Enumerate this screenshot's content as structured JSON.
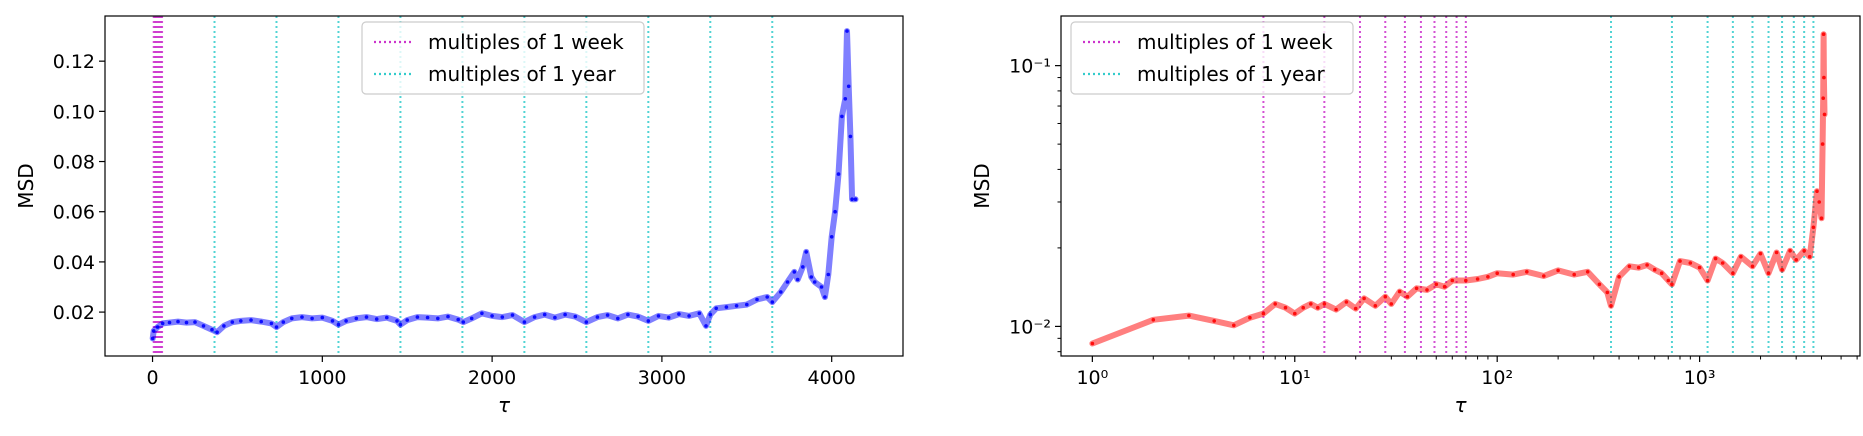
{
  "chart_data": [
    {
      "type": "line",
      "xlabel": "τ",
      "ylabel": "MSD",
      "xscale": "linear",
      "yscale": "linear",
      "xlim": [
        -280,
        4420
      ],
      "ylim": [
        0.0025,
        0.138
      ],
      "xticks": [
        0,
        1000,
        2000,
        3000,
        4000
      ],
      "xtick_labels": [
        "0",
        "1000",
        "2000",
        "3000",
        "4000"
      ],
      "yticks": [
        0.02,
        0.04,
        0.06,
        0.08,
        0.1,
        0.12
      ],
      "ytick_labels": [
        "0.02",
        "0.04",
        "0.06",
        "0.08",
        "0.10",
        "0.12"
      ],
      "line_color": "#0000ff",
      "legend": {
        "position": "upper-center",
        "entries": [
          {
            "label": "multiples of 1 week",
            "color": "#cc33cc",
            "style": "dotted"
          },
          {
            "label": "multiples of 1 year",
            "color": "#33cccc",
            "style": "dotted"
          }
        ]
      },
      "vlines": {
        "week_multiples": [
          7,
          14,
          21,
          28,
          35,
          42,
          49,
          56
        ],
        "year_multiples": [
          365,
          730,
          1095,
          1460,
          1825,
          2190,
          2555,
          2920,
          3285,
          3650
        ]
      },
      "series": [
        {
          "x": [
            1,
            7,
            30,
            60,
            100,
            150,
            200,
            250,
            300,
            350,
            380,
            420,
            470,
            520,
            580,
            640,
            700,
            730,
            770,
            820,
            880,
            940,
            1000,
            1060,
            1095,
            1140,
            1200,
            1260,
            1320,
            1380,
            1440,
            1460,
            1500,
            1560,
            1620,
            1680,
            1740,
            1800,
            1830,
            1880,
            1940,
            2000,
            2060,
            2120,
            2190,
            2250,
            2310,
            2370,
            2430,
            2490,
            2555,
            2620,
            2680,
            2740,
            2800,
            2860,
            2920,
            2980,
            3040,
            3100,
            3160,
            3220,
            3260,
            3285,
            3320,
            3380,
            3440,
            3500,
            3560,
            3620,
            3650,
            3700,
            3740,
            3780,
            3800,
            3830,
            3850,
            3880,
            3900,
            3940,
            3960,
            3980,
            4000,
            4020,
            4040,
            4060,
            4080,
            4090,
            4100,
            4110,
            4120,
            4140
          ],
          "values": [
            0.0095,
            0.0125,
            0.014,
            0.0155,
            0.0158,
            0.0162,
            0.0158,
            0.016,
            0.0145,
            0.013,
            0.012,
            0.0145,
            0.016,
            0.0165,
            0.0168,
            0.0162,
            0.0155,
            0.014,
            0.016,
            0.0175,
            0.018,
            0.0175,
            0.0178,
            0.0165,
            0.015,
            0.0165,
            0.0175,
            0.018,
            0.0172,
            0.0178,
            0.0165,
            0.015,
            0.0168,
            0.018,
            0.0178,
            0.0175,
            0.0182,
            0.017,
            0.016,
            0.0175,
            0.0195,
            0.0185,
            0.018,
            0.0188,
            0.016,
            0.018,
            0.019,
            0.0178,
            0.019,
            0.0182,
            0.016,
            0.018,
            0.0188,
            0.0175,
            0.019,
            0.0182,
            0.0165,
            0.0185,
            0.0178,
            0.0192,
            0.0185,
            0.0195,
            0.0145,
            0.019,
            0.0215,
            0.022,
            0.0225,
            0.023,
            0.025,
            0.026,
            0.024,
            0.028,
            0.032,
            0.036,
            0.033,
            0.038,
            0.044,
            0.034,
            0.032,
            0.03,
            0.026,
            0.035,
            0.05,
            0.06,
            0.075,
            0.098,
            0.105,
            0.132,
            0.11,
            0.09,
            0.065,
            0.065
          ]
        }
      ]
    },
    {
      "type": "line",
      "xlabel": "τ",
      "ylabel": "MSD",
      "xscale": "log",
      "yscale": "log",
      "xlim": [
        0.7,
        6200
      ],
      "ylim": [
        0.0077,
        0.155
      ],
      "xticks": [
        1,
        10,
        100,
        1000
      ],
      "xtick_labels": [
        "10⁰",
        "10¹",
        "10²",
        "10³"
      ],
      "yticks": [
        0.01,
        0.1
      ],
      "ytick_labels": [
        "10⁻²",
        "10⁻¹"
      ],
      "line_color": "#ff0000",
      "legend": {
        "position": "upper-left",
        "entries": [
          {
            "label": "multiples of 1 week",
            "color": "#cc33cc",
            "style": "dotted"
          },
          {
            "label": "multiples of 1 year",
            "color": "#33cccc",
            "style": "dotted"
          }
        ]
      },
      "vlines": {
        "week_multiples": [
          7,
          14,
          21,
          28,
          35,
          42,
          49,
          56,
          63,
          70
        ],
        "year_multiples": [
          365,
          730,
          1095,
          1460,
          1825,
          2190,
          2555,
          2920,
          3285,
          3650
        ]
      },
      "series": [
        {
          "x": [
            1,
            2,
            3,
            4,
            5,
            6,
            7,
            8,
            9,
            10,
            11,
            12,
            13,
            14,
            16,
            18,
            20,
            22,
            25,
            28,
            30,
            33,
            36,
            40,
            45,
            50,
            55,
            60,
            70,
            80,
            90,
            100,
            120,
            140,
            170,
            200,
            240,
            280,
            320,
            350,
            365,
            400,
            450,
            500,
            550,
            600,
            650,
            700,
            730,
            800,
            900,
            1000,
            1095,
            1200,
            1300,
            1460,
            1600,
            1825,
            2000,
            2190,
            2400,
            2555,
            2800,
            3000,
            3285,
            3500,
            3650,
            3800,
            3900,
            4000,
            4050,
            4080,
            4100,
            4110,
            4140
          ],
          "values": [
            0.0086,
            0.0106,
            0.011,
            0.0105,
            0.0101,
            0.0108,
            0.0112,
            0.0122,
            0.0118,
            0.0112,
            0.0118,
            0.0122,
            0.0118,
            0.0122,
            0.0116,
            0.0124,
            0.0117,
            0.0128,
            0.012,
            0.013,
            0.0122,
            0.0136,
            0.013,
            0.014,
            0.0138,
            0.0145,
            0.0142,
            0.015,
            0.015,
            0.0152,
            0.0155,
            0.016,
            0.0158,
            0.0162,
            0.0156,
            0.0164,
            0.0158,
            0.0162,
            0.0145,
            0.0135,
            0.012,
            0.0155,
            0.017,
            0.0168,
            0.0172,
            0.0165,
            0.016,
            0.015,
            0.0145,
            0.0178,
            0.0175,
            0.0168,
            0.015,
            0.0182,
            0.0175,
            0.016,
            0.0185,
            0.017,
            0.019,
            0.016,
            0.0192,
            0.0165,
            0.0195,
            0.018,
            0.0195,
            0.0185,
            0.024,
            0.033,
            0.03,
            0.026,
            0.05,
            0.075,
            0.132,
            0.09,
            0.065
          ]
        }
      ]
    }
  ]
}
